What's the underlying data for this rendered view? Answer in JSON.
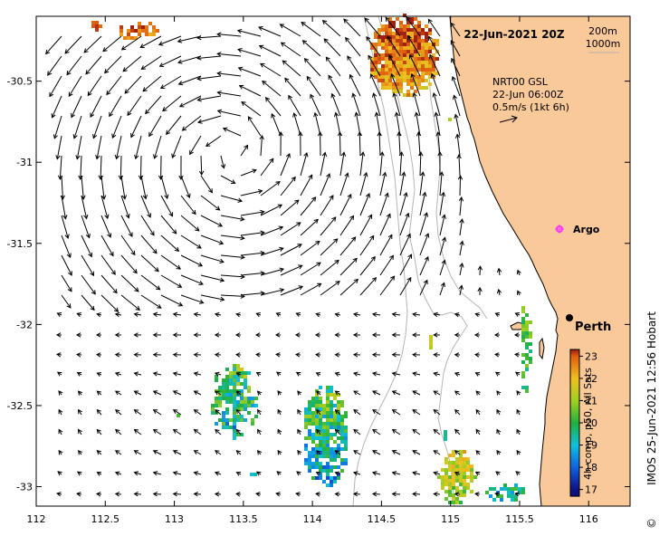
{
  "title": "22-Jun-2021 20Z",
  "legend": {
    "contour_200": "200m",
    "contour_1000": "1000m",
    "product": "NRT00 GSL",
    "product_time": "22-Jun 06:00Z",
    "vector_scale": "0.5m/s (1kt 6h)"
  },
  "markers": {
    "argo": "Argo",
    "city": "Perth"
  },
  "colorbar": {
    "title": "4h comp, p50, All Sats",
    "ticks": [
      "23",
      "22",
      "21",
      "20",
      "19",
      "18",
      "17"
    ],
    "min": 16.7,
    "max": 23.3
  },
  "credit": "IMOS 25-Jun-2021 12:56 Hobart",
  "copyright_symbol": "©",
  "axes": {
    "lon_ticks": [
      "112",
      "112.5",
      "113",
      "113.5",
      "114",
      "114.5",
      "115",
      "115.5",
      "116"
    ],
    "lat_ticks": [
      "-30.5",
      "-31",
      "-31.5",
      "-32",
      "-32.5",
      "-33"
    ],
    "lon_range": [
      112,
      116.3
    ],
    "lat_range": [
      -30.1,
      -33.12
    ]
  },
  "colors": {
    "land": "#f9c99a",
    "coast": "#000000",
    "bathy": "#b4b4b4",
    "argo": "#ff33ff"
  }
}
